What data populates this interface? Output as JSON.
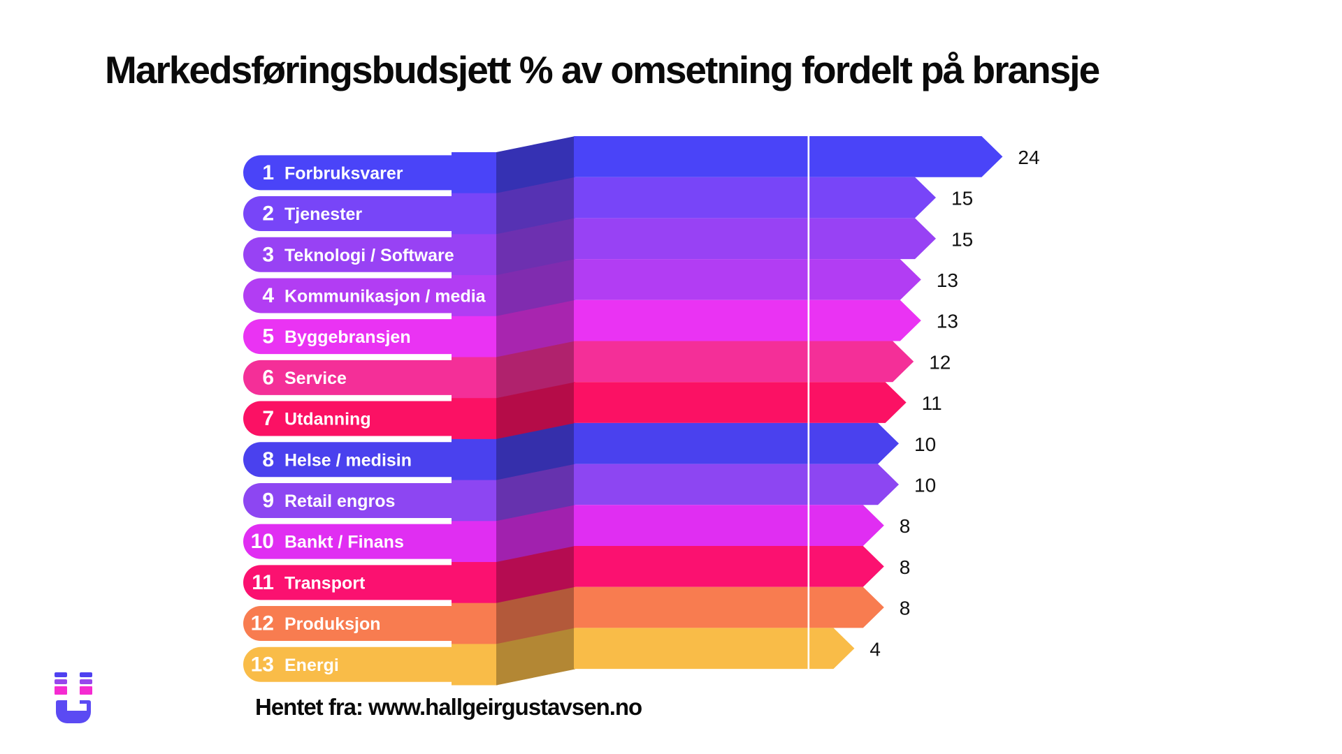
{
  "title": "Markedsføringsbudsjett % av omsetning fordelt på bransje",
  "source_note": "Hentet fra: www.hallgeirgustavsen.no",
  "logo": {
    "name": "hallgeir-gustavsen-magnet-logo",
    "colors": {
      "body": "#5b4af3",
      "dash_top": "#4f41f0",
      "dash_mid": "#9747ec",
      "dash_bottom": "#f52bd1"
    }
  },
  "chart_data": {
    "type": "bar",
    "orientation": "horizontal",
    "title": "Markedsføringsbudsjett % av omsetning fordelt på bransje",
    "unit": "% av omsetning",
    "value_labels": true,
    "reference_line": true,
    "style": "3d-folded ribbon rows with arrow-tipped bars",
    "ranks": [
      1,
      2,
      3,
      4,
      5,
      6,
      7,
      8,
      9,
      10,
      11,
      12,
      13
    ],
    "categories": [
      "Forbruksvarer",
      "Tjenester",
      "Teknologi / Software",
      "Kommunikasjon / media",
      "Byggebransjen",
      "Service",
      "Utdanning",
      "Helse / medisin",
      "Retail engros",
      "Bankt / Finans",
      "Transport",
      "Produksjon",
      "Energi"
    ],
    "values": [
      24,
      15,
      15,
      13,
      13,
      12,
      11,
      10,
      10,
      8,
      8,
      8,
      4
    ],
    "colors": [
      "#4a44f8",
      "#7845f8",
      "#9842f4",
      "#b23df3",
      "#ea33f3",
      "#f42f98",
      "#fb1164",
      "#4a41ee",
      "#8d46f2",
      "#e02ef2",
      "#fb1170",
      "#f87c50",
      "#f9bc48"
    ]
  }
}
